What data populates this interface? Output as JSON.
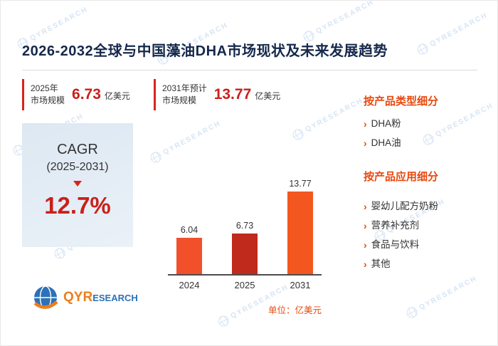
{
  "title": "2026-2032全球与中国藻油DHA市场现状及未来发展趋势",
  "stats": [
    {
      "label_line1": "2025年",
      "label_line2": "市场规模",
      "value": "6.73",
      "unit": "亿美元"
    },
    {
      "label_line1": "2031年预计",
      "label_line2": "市场规模",
      "value": "13.77",
      "unit": "亿美元"
    }
  ],
  "cagr": {
    "label": "CAGR",
    "period": "(2025-2031)",
    "value": "12.7%"
  },
  "chart_data": {
    "type": "bar",
    "categories": [
      "2024",
      "2025",
      "2031"
    ],
    "values": [
      6.04,
      6.73,
      13.77
    ],
    "bar_colors": [
      "#f1502b",
      "#bf2a1c",
      "#f3571f"
    ],
    "ylim": [
      0,
      16
    ],
    "grid": false,
    "legend": false,
    "unit_note": "单位：亿美元"
  },
  "sidebar": {
    "bullet": "›",
    "sections": [
      {
        "heading": "按产品类型细分",
        "items": [
          "DHA粉",
          "DHA油"
        ]
      },
      {
        "heading": "按产品应用细分",
        "items": [
          "婴幼儿配方奶粉",
          "营养补充剂",
          "食品与饮料",
          "其他"
        ]
      }
    ]
  },
  "logo": {
    "part1": "QYR",
    "part2": "ESEARCH"
  },
  "watermark": {
    "text": "QYRESEARCH"
  },
  "colors": {
    "accent_red": "#c9201a",
    "accent_orange": "#e8480e",
    "title_navy": "#15284b",
    "bar_axis": "#4d4d4d"
  }
}
